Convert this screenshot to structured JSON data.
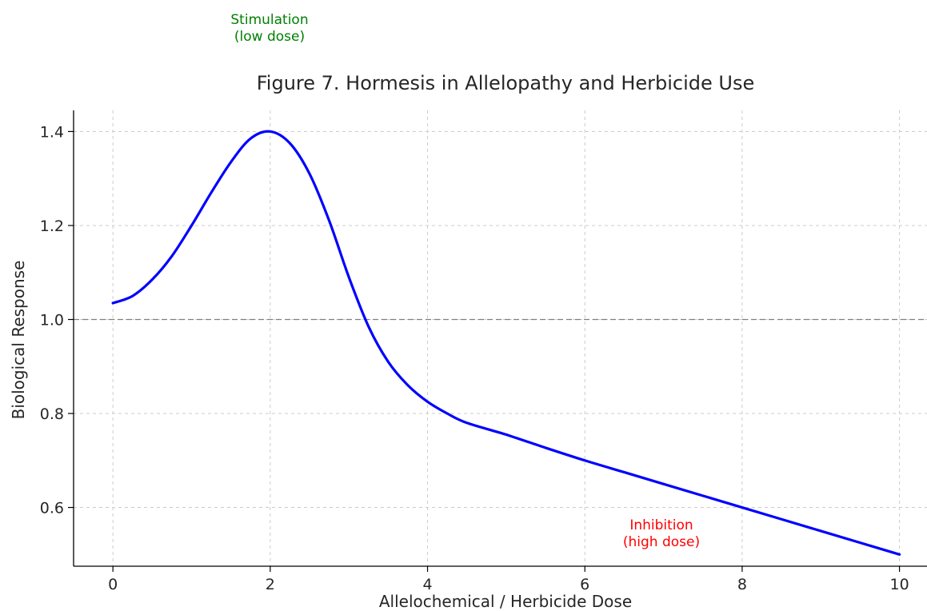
{
  "chart_data": {
    "type": "line",
    "title": "Figure 7. Hormesis in Allelopathy and Herbicide Use",
    "xlabel": "Allelochemical / Herbicide Dose",
    "ylabel": "Biological Response",
    "xlim": [
      -0.5,
      10.35
    ],
    "ylim": [
      0.475,
      1.445
    ],
    "x_ticks": [
      0,
      2,
      4,
      6,
      8,
      10
    ],
    "y_ticks": [
      0.6,
      0.8,
      1.0,
      1.2,
      1.4
    ],
    "x_tick_labels": [
      "0",
      "2",
      "4",
      "6",
      "8",
      "10"
    ],
    "y_tick_labels": [
      "0.6",
      "0.8",
      "1.0",
      "1.2",
      "1.4"
    ],
    "grid": true,
    "reference_line": {
      "y": 1.0,
      "style": "dashed",
      "color": "#808080"
    },
    "series": [
      {
        "color": "#0000ff",
        "x": [
          0,
          0.25,
          0.5,
          0.75,
          1.0,
          1.25,
          1.5,
          1.75,
          2.0,
          2.25,
          2.5,
          2.75,
          3.0,
          3.25,
          3.5,
          3.75,
          4.0,
          4.25,
          4.5,
          5.0,
          5.5,
          6.0,
          6.5,
          7.0,
          7.5,
          8.0,
          8.5,
          9.0,
          9.5,
          10.0
        ],
        "y": [
          1.035,
          1.05,
          1.085,
          1.135,
          1.2,
          1.27,
          1.335,
          1.385,
          1.4,
          1.375,
          1.31,
          1.21,
          1.09,
          0.985,
          0.91,
          0.86,
          0.825,
          0.8,
          0.78,
          0.755,
          0.727,
          0.7,
          0.675,
          0.65,
          0.625,
          0.6,
          0.575,
          0.55,
          0.525,
          0.5
        ]
      }
    ],
    "annotations": [
      {
        "text": [
          "Stimulation",
          "(low dose)"
        ],
        "color": "#008000"
      },
      {
        "text": [
          "Inhibition",
          "(high dose)"
        ],
        "color": "#ff0000"
      }
    ]
  }
}
